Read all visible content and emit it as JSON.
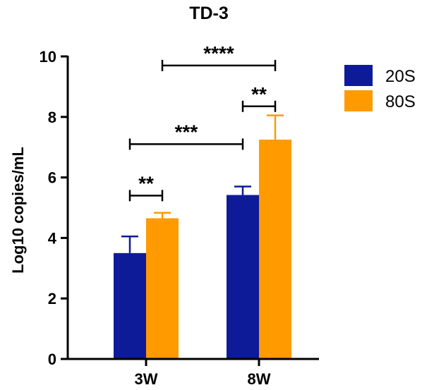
{
  "chart_data": {
    "type": "bar",
    "title": "TD-3",
    "xlabel": "",
    "ylabel": "Log10 copies/mL",
    "categories": [
      "3W",
      "8W"
    ],
    "ylim": [
      0,
      10
    ],
    "yticks": [
      0,
      2,
      4,
      6,
      8,
      10
    ],
    "grid": false,
    "legend_position": "top-right",
    "series": [
      {
        "name": "20S",
        "color": "#0d1b99",
        "values": [
          3.5,
          5.42
        ],
        "error": [
          0.55,
          0.28
        ]
      },
      {
        "name": "80S",
        "color": "#ff9a00",
        "values": [
          4.65,
          7.25
        ],
        "error": [
          0.18,
          0.8
        ]
      }
    ],
    "significance": [
      {
        "label": "**",
        "from": {
          "category": 0,
          "series": 0
        },
        "to": {
          "category": 0,
          "series": 1
        },
        "y": 5.4
      },
      {
        "label": "***",
        "from": {
          "category": 0,
          "series": 0
        },
        "to": {
          "category": 1,
          "series": 0
        },
        "y": 7.1
      },
      {
        "label": "**",
        "from": {
          "category": 1,
          "series": 0
        },
        "to": {
          "category": 1,
          "series": 1
        },
        "y": 8.35
      },
      {
        "label": "****",
        "from": {
          "category": 0,
          "series": 1
        },
        "to": {
          "category": 1,
          "series": 1
        },
        "y": 9.7
      }
    ]
  }
}
